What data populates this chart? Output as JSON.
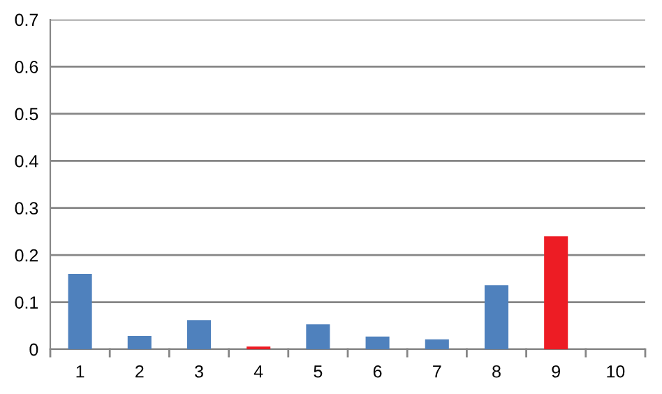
{
  "chart_data": {
    "type": "bar",
    "categories": [
      "1",
      "2",
      "3",
      "4",
      "5",
      "6",
      "7",
      "8",
      "9",
      "10"
    ],
    "values": [
      0.16,
      0.028,
      0.062,
      0.006,
      0.053,
      0.027,
      0.021,
      0.136,
      0.24,
      0
    ],
    "colors": [
      "#4f81bd",
      "#4f81bd",
      "#4f81bd",
      "#ed1c24",
      "#4f81bd",
      "#4f81bd",
      "#4f81bd",
      "#4f81bd",
      "#ed1c24",
      "#4f81bd"
    ],
    "ylim": [
      0,
      0.7
    ],
    "yticks": [
      {
        "value": 0,
        "label": "0"
      },
      0.1,
      0.2,
      0.3,
      0.4,
      0.5,
      0.6,
      0.7
    ],
    "grid": "y"
  }
}
